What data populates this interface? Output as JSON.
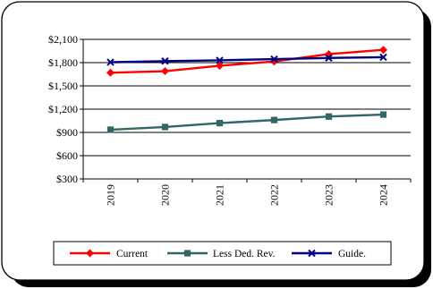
{
  "chart_data": {
    "type": "line",
    "categories": [
      "2019",
      "2020",
      "2021",
      "2022",
      "2023",
      "2024"
    ],
    "series": [
      {
        "name": "Current",
        "values": [
          1670,
          1690,
          1760,
          1815,
          1910,
          1965
        ],
        "color": "#ff0000",
        "marker": "diamond"
      },
      {
        "name": "Less Ded. Rev.",
        "values": [
          935,
          970,
          1020,
          1060,
          1105,
          1130
        ],
        "color": "#336666",
        "marker": "square"
      },
      {
        "name": "Guide.",
        "values": [
          1805,
          1820,
          1830,
          1845,
          1860,
          1870
        ],
        "color": "#000080",
        "marker": "x"
      }
    ],
    "ylim": [
      300,
      2100
    ],
    "yticks": [
      300,
      600,
      900,
      1200,
      1500,
      1800,
      2100
    ],
    "ytick_labels": [
      "$300",
      "$600",
      "$900",
      "$1,200",
      "$1,500",
      "$1,800",
      "$2,100"
    ],
    "title": "",
    "xlabel": "",
    "ylabel": "",
    "grid": "horizontal",
    "legend_position": "bottom"
  }
}
